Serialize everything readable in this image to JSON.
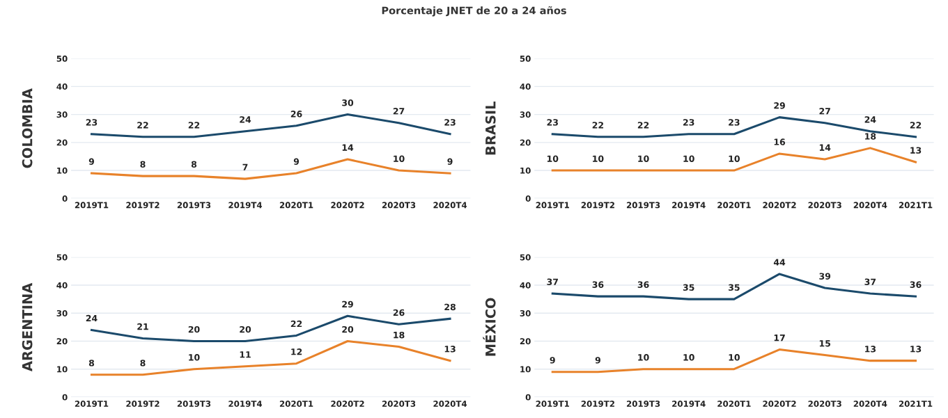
{
  "chart_data": [
    {
      "type": "line",
      "title": "Porcentaje JNET de 20 a 24 años",
      "ylabel": "COLOMBIA",
      "categories": [
        "2019T1",
        "2019T2",
        "2019T3",
        "2019T4",
        "2020T1",
        "2020T2",
        "2020T3",
        "2020T4"
      ],
      "ylim": [
        0,
        50
      ],
      "yticks": [
        0,
        10,
        20,
        30,
        40,
        50
      ],
      "grid": "y",
      "data_labels": true,
      "series": [
        {
          "color": "#1b4a6b",
          "values": [
            23,
            22,
            22,
            24,
            26,
            30,
            27,
            23
          ]
        },
        {
          "color": "#e8822a",
          "values": [
            9,
            8,
            8,
            7,
            9,
            14,
            10,
            9
          ]
        }
      ]
    },
    {
      "type": "line",
      "ylabel": "BRASIL",
      "categories": [
        "2019T1",
        "2019T2",
        "2019T3",
        "2019T4",
        "2020T1",
        "2020T2",
        "2020T3",
        "2020T4",
        "2021T1"
      ],
      "ylim": [
        0,
        50
      ],
      "yticks": [
        0,
        10,
        20,
        30,
        40,
        50
      ],
      "grid": "y",
      "data_labels": true,
      "series": [
        {
          "color": "#1b4a6b",
          "values": [
            23,
            22,
            22,
            23,
            23,
            29,
            27,
            24,
            22
          ]
        },
        {
          "color": "#e8822a",
          "values": [
            10,
            10,
            10,
            10,
            10,
            16,
            14,
            18,
            13
          ]
        }
      ]
    },
    {
      "type": "line",
      "ylabel": "ARGENTINA",
      "categories": [
        "2019T1",
        "2019T2",
        "2019T3",
        "2019T4",
        "2020T1",
        "2020T2",
        "2020T3",
        "2020T4"
      ],
      "ylim": [
        0,
        50
      ],
      "yticks": [
        0,
        10,
        20,
        30,
        40,
        50
      ],
      "grid": "y",
      "data_labels": true,
      "series": [
        {
          "color": "#1b4a6b",
          "values": [
            24,
            21,
            20,
            20,
            22,
            29,
            26,
            28
          ]
        },
        {
          "color": "#e8822a",
          "values": [
            8,
            8,
            10,
            11,
            12,
            20,
            18,
            13
          ]
        }
      ]
    },
    {
      "type": "line",
      "ylabel": "MÉXICO",
      "categories": [
        "2019T1",
        "2019T2",
        "2019T3",
        "2019T4",
        "2020T1",
        "2020T2",
        "2020T3",
        "2020T4",
        "2021T1"
      ],
      "ylim": [
        0,
        50
      ],
      "yticks": [
        0,
        10,
        20,
        30,
        40,
        50
      ],
      "grid": "y",
      "data_labels": true,
      "series": [
        {
          "color": "#1b4a6b",
          "values": [
            37,
            36,
            36,
            35,
            35,
            44,
            39,
            37,
            36
          ]
        },
        {
          "color": "#e8822a",
          "values": [
            9,
            9,
            10,
            10,
            10,
            17,
            15,
            13,
            13
          ]
        }
      ]
    }
  ]
}
